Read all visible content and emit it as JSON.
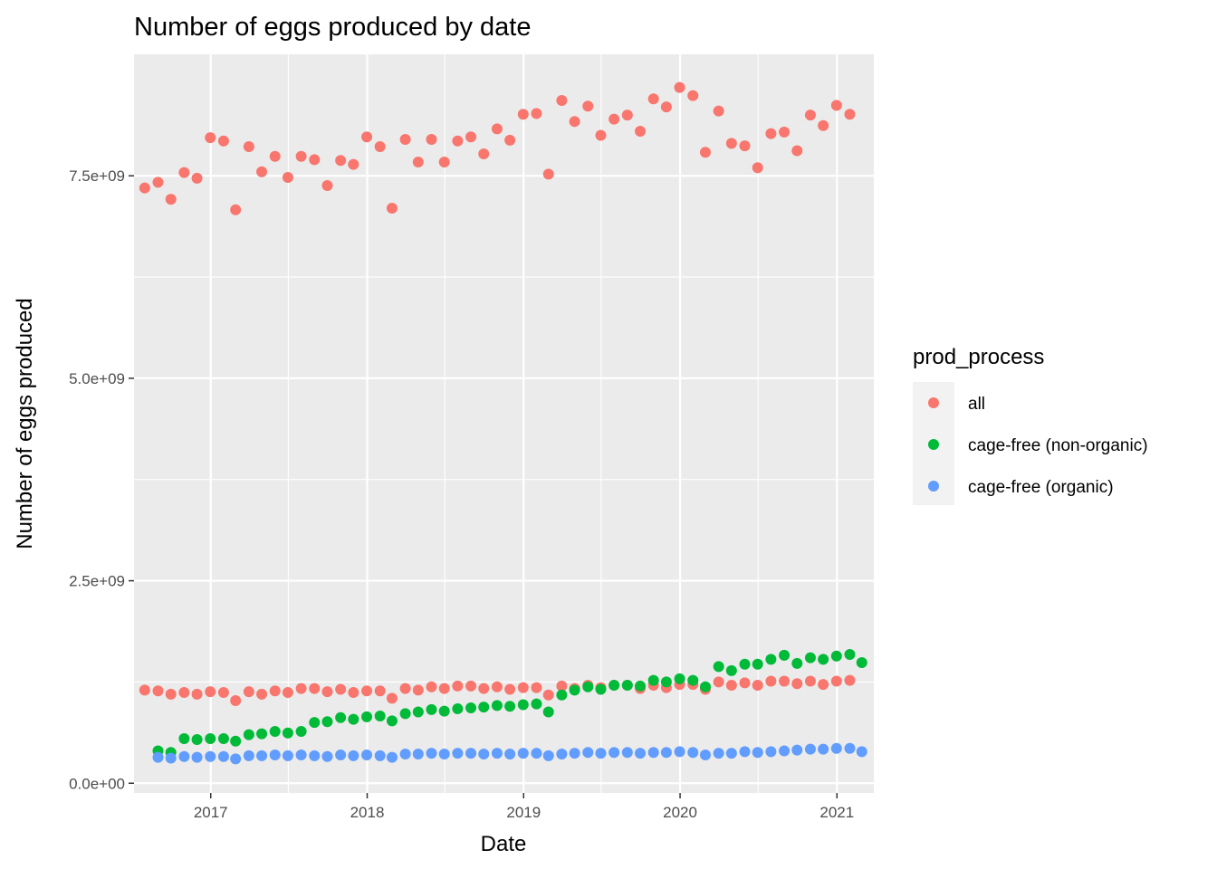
{
  "chart_data": {
    "type": "scatter",
    "title": "Number of eggs produced by date",
    "xlabel": "Date",
    "ylabel": "Number of eggs produced",
    "x_ticks": [
      "2017",
      "2018",
      "2019",
      "2020",
      "2021"
    ],
    "y_ticks": [
      "0.0e+00",
      "2.5e+09",
      "5.0e+09",
      "7.5e+09"
    ],
    "ylim": [
      -120000000,
      9000000000
    ],
    "xlim": [
      "2016-07-06",
      "2021-03-28"
    ],
    "grid": true,
    "panel_background": "#ebebeb",
    "grid_color": "#ffffff",
    "legend": {
      "title": "prod_process",
      "placement": "right"
    },
    "series": [
      {
        "name": "all",
        "color": "#F8766D",
        "points": [
          [
            "2016-07-31",
            7350000000.0
          ],
          [
            "2016-08-31",
            7420000000.0
          ],
          [
            "2016-09-30",
            7210000000.0
          ],
          [
            "2016-10-31",
            7540000000.0
          ],
          [
            "2016-11-30",
            7470000000.0
          ],
          [
            "2016-12-31",
            7970000000.0
          ],
          [
            "2017-01-31",
            7930000000.0
          ],
          [
            "2017-02-28",
            7080000000.0
          ],
          [
            "2017-03-31",
            7860000000.0
          ],
          [
            "2017-04-30",
            7550000000.0
          ],
          [
            "2017-05-31",
            7740000000.0
          ],
          [
            "2017-06-30",
            7480000000.0
          ],
          [
            "2017-07-31",
            7740000000.0
          ],
          [
            "2017-08-31",
            7700000000.0
          ],
          [
            "2017-09-30",
            7380000000.0
          ],
          [
            "2017-10-31",
            7690000000.0
          ],
          [
            "2017-11-30",
            7640000000.0
          ],
          [
            "2017-12-31",
            7980000000.0
          ],
          [
            "2018-01-31",
            7860000000.0
          ],
          [
            "2018-02-28",
            7100000000.0
          ],
          [
            "2018-03-31",
            7950000000.0
          ],
          [
            "2018-04-30",
            7670000000.0
          ],
          [
            "2018-05-31",
            7950000000.0
          ],
          [
            "2018-06-30",
            7670000000.0
          ],
          [
            "2018-07-31",
            7930000000.0
          ],
          [
            "2018-08-31",
            7980000000.0
          ],
          [
            "2018-09-30",
            7770000000.0
          ],
          [
            "2018-10-31",
            8080000000.0
          ],
          [
            "2018-11-30",
            7940000000.0
          ],
          [
            "2018-12-31",
            8260000000.0
          ],
          [
            "2019-01-31",
            8270000000.0
          ],
          [
            "2019-02-28",
            7520000000.0
          ],
          [
            "2019-03-31",
            8430000000.0
          ],
          [
            "2019-04-30",
            8170000000.0
          ],
          [
            "2019-05-31",
            8360000000.0
          ],
          [
            "2019-06-30",
            8000000000.0
          ],
          [
            "2019-07-31",
            8200000000.0
          ],
          [
            "2019-08-31",
            8250000000.0
          ],
          [
            "2019-09-30",
            8050000000.0
          ],
          [
            "2019-10-31",
            8450000000.0
          ],
          [
            "2019-11-30",
            8350000000.0
          ],
          [
            "2019-12-31",
            8590000000.0
          ],
          [
            "2020-01-31",
            8490000000.0
          ],
          [
            "2020-02-29",
            7790000000.0
          ],
          [
            "2020-03-31",
            8300000000.0
          ],
          [
            "2020-04-30",
            7900000000.0
          ],
          [
            "2020-05-31",
            7870000000.0
          ],
          [
            "2020-06-30",
            7600000000.0
          ],
          [
            "2020-07-31",
            8020000000.0
          ],
          [
            "2020-08-31",
            8040000000.0
          ],
          [
            "2020-09-30",
            7810000000.0
          ],
          [
            "2020-10-31",
            8250000000.0
          ],
          [
            "2020-11-30",
            8120000000.0
          ],
          [
            "2020-12-31",
            8370000000.0
          ],
          [
            "2021-01-31",
            8260000000.0
          ],
          [
            "2016-07-31",
            1150000000.0
          ],
          [
            "2016-08-31",
            1140000000.0
          ],
          [
            "2016-09-30",
            1100000000.0
          ],
          [
            "2016-10-31",
            1120000000.0
          ],
          [
            "2016-11-30",
            1100000000.0
          ],
          [
            "2016-12-31",
            1130000000.0
          ],
          [
            "2017-01-31",
            1120000000.0
          ],
          [
            "2017-02-28",
            1020000000.0
          ],
          [
            "2017-03-31",
            1130000000.0
          ],
          [
            "2017-04-30",
            1100000000.0
          ],
          [
            "2017-05-31",
            1140000000.0
          ],
          [
            "2017-06-30",
            1120000000.0
          ],
          [
            "2017-07-31",
            1170000000.0
          ],
          [
            "2017-08-31",
            1170000000.0
          ],
          [
            "2017-09-30",
            1130000000.0
          ],
          [
            "2017-10-31",
            1160000000.0
          ],
          [
            "2017-11-30",
            1120000000.0
          ],
          [
            "2017-12-31",
            1140000000.0
          ],
          [
            "2018-01-31",
            1140000000.0
          ],
          [
            "2018-02-28",
            1050000000.0
          ],
          [
            "2018-03-31",
            1170000000.0
          ],
          [
            "2018-04-30",
            1150000000.0
          ],
          [
            "2018-05-31",
            1190000000.0
          ],
          [
            "2018-06-30",
            1170000000.0
          ],
          [
            "2018-07-31",
            1200000000.0
          ],
          [
            "2018-08-31",
            1200000000.0
          ],
          [
            "2018-09-30",
            1170000000.0
          ],
          [
            "2018-10-31",
            1190000000.0
          ],
          [
            "2018-11-30",
            1160000000.0
          ],
          [
            "2018-12-31",
            1180000000.0
          ],
          [
            "2019-01-31",
            1180000000.0
          ],
          [
            "2019-02-28",
            1090000000.0
          ],
          [
            "2019-03-31",
            1200000000.0
          ],
          [
            "2019-04-30",
            1170000000.0
          ],
          [
            "2019-05-31",
            1210000000.0
          ],
          [
            "2019-06-30",
            1180000000.0
          ],
          [
            "2019-07-31",
            1210000000.0
          ],
          [
            "2019-08-31",
            1210000000.0
          ],
          [
            "2019-09-30",
            1170000000.0
          ],
          [
            "2019-10-31",
            1210000000.0
          ],
          [
            "2019-11-30",
            1180000000.0
          ],
          [
            "2019-12-31",
            1220000000.0
          ],
          [
            "2020-01-31",
            1220000000.0
          ],
          [
            "2020-02-29",
            1160000000.0
          ],
          [
            "2020-03-31",
            1250000000.0
          ],
          [
            "2020-04-30",
            1210000000.0
          ],
          [
            "2020-05-31",
            1240000000.0
          ],
          [
            "2020-06-30",
            1210000000.0
          ],
          [
            "2020-07-31",
            1260000000.0
          ],
          [
            "2020-08-31",
            1260000000.0
          ],
          [
            "2020-09-30",
            1230000000.0
          ],
          [
            "2020-10-31",
            1260000000.0
          ],
          [
            "2020-11-30",
            1220000000.0
          ],
          [
            "2020-12-31",
            1260000000.0
          ],
          [
            "2021-01-31",
            1270000000.0
          ]
        ]
      },
      {
        "name": "cage-free (non-organic)",
        "color": "#00BA38",
        "points": [
          [
            "2016-08-31",
            400000000.0
          ],
          [
            "2016-09-30",
            380000000.0
          ],
          [
            "2016-10-31",
            550000000.0
          ],
          [
            "2016-11-30",
            540000000.0
          ],
          [
            "2016-12-31",
            550000000.0
          ],
          [
            "2017-01-31",
            550000000.0
          ],
          [
            "2017-02-28",
            520000000.0
          ],
          [
            "2017-03-31",
            600000000.0
          ],
          [
            "2017-04-30",
            610000000.0
          ],
          [
            "2017-05-31",
            640000000.0
          ],
          [
            "2017-06-30",
            620000000.0
          ],
          [
            "2017-07-31",
            640000000.0
          ],
          [
            "2017-08-31",
            750000000.0
          ],
          [
            "2017-09-30",
            760000000.0
          ],
          [
            "2017-10-31",
            810000000.0
          ],
          [
            "2017-11-30",
            790000000.0
          ],
          [
            "2017-12-31",
            820000000.0
          ],
          [
            "2018-01-31",
            830000000.0
          ],
          [
            "2018-02-28",
            770000000.0
          ],
          [
            "2018-03-31",
            860000000.0
          ],
          [
            "2018-04-30",
            880000000.0
          ],
          [
            "2018-05-31",
            910000000.0
          ],
          [
            "2018-06-30",
            890000000.0
          ],
          [
            "2018-07-31",
            920000000.0
          ],
          [
            "2018-08-31",
            930000000.0
          ],
          [
            "2018-09-30",
            940000000.0
          ],
          [
            "2018-10-31",
            960000000.0
          ],
          [
            "2018-11-30",
            950000000.0
          ],
          [
            "2018-12-31",
            970000000.0
          ],
          [
            "2019-01-31",
            980000000.0
          ],
          [
            "2019-02-28",
            880000000.0
          ],
          [
            "2019-03-31",
            1090000000.0
          ],
          [
            "2019-04-30",
            1150000000.0
          ],
          [
            "2019-05-31",
            1190000000.0
          ],
          [
            "2019-06-30",
            1160000000.0
          ],
          [
            "2019-07-31",
            1210000000.0
          ],
          [
            "2019-08-31",
            1210000000.0
          ],
          [
            "2019-09-30",
            1200000000.0
          ],
          [
            "2019-10-31",
            1270000000.0
          ],
          [
            "2019-11-30",
            1250000000.0
          ],
          [
            "2019-12-31",
            1290000000.0
          ],
          [
            "2020-01-31",
            1270000000.0
          ],
          [
            "2020-02-29",
            1190000000.0
          ],
          [
            "2020-03-31",
            1440000000.0
          ],
          [
            "2020-04-30",
            1390000000.0
          ],
          [
            "2020-05-31",
            1470000000.0
          ],
          [
            "2020-06-30",
            1470000000.0
          ],
          [
            "2020-07-31",
            1530000000.0
          ],
          [
            "2020-08-31",
            1580000000.0
          ],
          [
            "2020-09-30",
            1480000000.0
          ],
          [
            "2020-10-31",
            1550000000.0
          ],
          [
            "2020-11-30",
            1530000000.0
          ],
          [
            "2020-12-31",
            1570000000.0
          ],
          [
            "2021-01-31",
            1590000000.0
          ],
          [
            "2021-02-28",
            1490000000.0
          ]
        ]
      },
      {
        "name": "cage-free (organic)",
        "color": "#619CFF",
        "points": [
          [
            "2016-08-31",
            320000000.0
          ],
          [
            "2016-09-30",
            310000000.0
          ],
          [
            "2016-10-31",
            330000000.0
          ],
          [
            "2016-11-30",
            320000000.0
          ],
          [
            "2016-12-31",
            330000000.0
          ],
          [
            "2017-01-31",
            330000000.0
          ],
          [
            "2017-02-28",
            300000000.0
          ],
          [
            "2017-03-31",
            340000000.0
          ],
          [
            "2017-04-30",
            340000000.0
          ],
          [
            "2017-05-31",
            350000000.0
          ],
          [
            "2017-06-30",
            340000000.0
          ],
          [
            "2017-07-31",
            350000000.0
          ],
          [
            "2017-08-31",
            340000000.0
          ],
          [
            "2017-09-30",
            330000000.0
          ],
          [
            "2017-10-31",
            350000000.0
          ],
          [
            "2017-11-30",
            340000000.0
          ],
          [
            "2017-12-31",
            350000000.0
          ],
          [
            "2018-01-31",
            340000000.0
          ],
          [
            "2018-02-28",
            320000000.0
          ],
          [
            "2018-03-31",
            360000000.0
          ],
          [
            "2018-04-30",
            360000000.0
          ],
          [
            "2018-05-31",
            370000000.0
          ],
          [
            "2018-06-30",
            360000000.0
          ],
          [
            "2018-07-31",
            370000000.0
          ],
          [
            "2018-08-31",
            370000000.0
          ],
          [
            "2018-09-30",
            360000000.0
          ],
          [
            "2018-10-31",
            370000000.0
          ],
          [
            "2018-11-30",
            360000000.0
          ],
          [
            "2018-12-31",
            370000000.0
          ],
          [
            "2019-01-31",
            370000000.0
          ],
          [
            "2019-02-28",
            340000000.0
          ],
          [
            "2019-03-31",
            360000000.0
          ],
          [
            "2019-04-30",
            370000000.0
          ],
          [
            "2019-05-31",
            380000000.0
          ],
          [
            "2019-06-30",
            370000000.0
          ],
          [
            "2019-07-31",
            380000000.0
          ],
          [
            "2019-08-31",
            380000000.0
          ],
          [
            "2019-09-30",
            370000000.0
          ],
          [
            "2019-10-31",
            380000000.0
          ],
          [
            "2019-11-30",
            380000000.0
          ],
          [
            "2019-12-31",
            390000000.0
          ],
          [
            "2020-01-31",
            380000000.0
          ],
          [
            "2020-02-29",
            350000000.0
          ],
          [
            "2020-03-31",
            370000000.0
          ],
          [
            "2020-04-30",
            370000000.0
          ],
          [
            "2020-05-31",
            390000000.0
          ],
          [
            "2020-06-30",
            380000000.0
          ],
          [
            "2020-07-31",
            390000000.0
          ],
          [
            "2020-08-31",
            400000000.0
          ],
          [
            "2020-09-30",
            410000000.0
          ],
          [
            "2020-10-31",
            420000000.0
          ],
          [
            "2020-11-30",
            420000000.0
          ],
          [
            "2020-12-31",
            430000000.0
          ],
          [
            "2021-01-31",
            430000000.0
          ],
          [
            "2021-02-28",
            390000000.0
          ]
        ]
      }
    ]
  }
}
